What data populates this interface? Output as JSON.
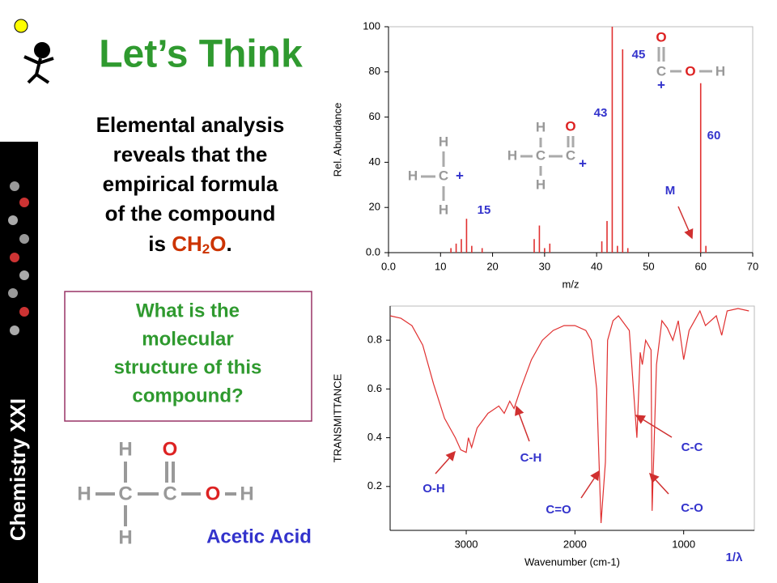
{
  "sidebar": "Chemistry XXI",
  "title": "Let’s Think",
  "intro": {
    "lines": [
      "Elemental analysis",
      "reveals that the",
      "empirical formula",
      "of the compound"
    ],
    "last_prefix": "is ",
    "formula": [
      "CH",
      "2",
      "O"
    ],
    "period": "."
  },
  "question": [
    "What is the",
    "molecular",
    "structure of this",
    "compound?"
  ],
  "structure": {
    "atoms": [
      "H",
      "H",
      "C",
      "C",
      "O",
      "O",
      "H",
      "H"
    ],
    "name": "Acetic Acid"
  },
  "fragments": [
    {
      "atoms": [
        "H",
        "H",
        "C",
        "H"
      ],
      "charge": "+"
    },
    {
      "atoms": [
        "H",
        "O",
        "H",
        "C",
        "C",
        "H"
      ],
      "charge": "+"
    },
    {
      "atoms": [
        "O",
        "C",
        "O",
        "H"
      ],
      "charge": "+"
    }
  ],
  "ms_annotations": [
    "15",
    "43",
    "45",
    "60",
    "M"
  ],
  "ir_annotations": [
    "O-H",
    "C-H",
    "C=O",
    "C-C",
    "C-O",
    "1/λ"
  ],
  "chart_data": [
    {
      "type": "bar",
      "xlabel": "m/z",
      "ylabel": "Rel. Abundance",
      "color": "#e03030",
      "x": [
        12,
        13,
        14,
        15,
        16,
        18,
        28,
        29,
        30,
        31,
        41,
        42,
        43,
        44,
        45,
        46,
        60,
        61
      ],
      "values": [
        2,
        4,
        6,
        15,
        3,
        2,
        6,
        12,
        2,
        4,
        5,
        14,
        100,
        3,
        90,
        2,
        75,
        3
      ],
      "xlim": [
        0,
        70
      ],
      "xticks": [
        {
          "value": 0,
          "label": "0.0"
        },
        10,
        20,
        30,
        40,
        50,
        60,
        70
      ],
      "ylim": [
        0,
        100
      ],
      "yticks": [
        {
          "value": 0,
          "label": "0.0"
        },
        20,
        40,
        60,
        80,
        100
      ]
    },
    {
      "type": "line",
      "xlabel": "Wavenumber (cm-1)",
      "ylabel": "TRANSMITTANCE",
      "color": "#e03030",
      "x": [
        3700,
        3600,
        3500,
        3400,
        3300,
        3200,
        3100,
        3050,
        3000,
        2980,
        2950,
        2900,
        2800,
        2700,
        2650,
        2600,
        2560,
        2500,
        2400,
        2300,
        2200,
        2100,
        2000,
        1900,
        1850,
        1800,
        1760,
        1720,
        1700,
        1650,
        1600,
        1500,
        1430,
        1400,
        1380,
        1350,
        1300,
        1290,
        1250,
        1200,
        1150,
        1100,
        1050,
        1000,
        950,
        900,
        850,
        800,
        700,
        650,
        600,
        500,
        400
      ],
      "values": [
        0.9,
        0.89,
        0.86,
        0.78,
        0.62,
        0.48,
        0.4,
        0.35,
        0.34,
        0.4,
        0.36,
        0.44,
        0.5,
        0.53,
        0.5,
        0.55,
        0.52,
        0.6,
        0.72,
        0.8,
        0.84,
        0.86,
        0.86,
        0.84,
        0.8,
        0.6,
        0.05,
        0.3,
        0.8,
        0.88,
        0.9,
        0.84,
        0.4,
        0.75,
        0.7,
        0.8,
        0.76,
        0.1,
        0.7,
        0.88,
        0.85,
        0.8,
        0.88,
        0.72,
        0.84,
        0.88,
        0.92,
        0.86,
        0.9,
        0.82,
        0.92,
        0.93,
        0.92
      ],
      "xlim": [
        3700,
        350
      ],
      "xticks": [
        3000,
        2000,
        1000
      ],
      "ylim": [
        0.02,
        0.94
      ],
      "yticks": [
        0.2,
        0.4,
        0.6,
        0.8
      ]
    }
  ]
}
